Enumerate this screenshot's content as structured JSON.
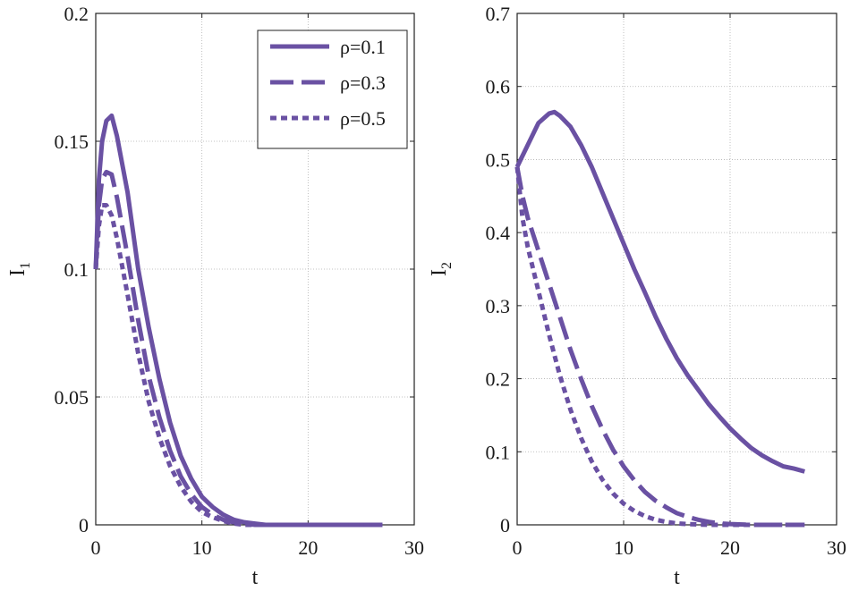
{
  "chart_data": [
    {
      "type": "line",
      "title": "",
      "xlabel": "t",
      "ylabel": "I",
      "ylabel_sub": "1",
      "xlim": [
        0,
        30
      ],
      "ylim": [
        0,
        0.2
      ],
      "xticks": [
        0,
        10,
        20,
        30
      ],
      "yticks": [
        0,
        0.05,
        0.1,
        0.15,
        0.2
      ],
      "xtick_labels": [
        "0",
        "10",
        "20",
        "30"
      ],
      "ytick_labels": [
        "0",
        "0.05",
        "0.1",
        "0.15",
        "0.2"
      ],
      "grid": true,
      "legend_placement": "top-right",
      "line_color": "#6a51a3",
      "series": [
        {
          "name": "ρ=0.1",
          "style": "solid",
          "x": [
            0,
            0.3,
            0.6,
            1,
            1.5,
            2,
            3,
            4,
            5,
            6,
            7,
            8,
            9,
            10,
            11,
            12,
            13,
            14,
            15,
            16,
            18,
            20,
            22,
            24,
            27
          ],
          "y": [
            0.1,
            0.135,
            0.15,
            0.158,
            0.16,
            0.152,
            0.13,
            0.1,
            0.077,
            0.057,
            0.04,
            0.027,
            0.018,
            0.011,
            0.007,
            0.004,
            0.002,
            0.001,
            0.0005,
            0,
            0,
            0,
            0,
            0,
            0
          ]
        },
        {
          "name": "ρ=0.3",
          "style": "dashed",
          "x": [
            0,
            0.3,
            0.6,
            1,
            1.5,
            2,
            3,
            4,
            5,
            6,
            7,
            8,
            9,
            10,
            11,
            12,
            13,
            14,
            15,
            16,
            18,
            20,
            22,
            24,
            27
          ],
          "y": [
            0.1,
            0.125,
            0.135,
            0.138,
            0.137,
            0.128,
            0.105,
            0.08,
            0.058,
            0.042,
            0.029,
            0.019,
            0.012,
            0.007,
            0.004,
            0.002,
            0.001,
            0.0005,
            0,
            0,
            0,
            0,
            0,
            0,
            0
          ]
        },
        {
          "name": "ρ=0.5",
          "style": "dotted",
          "x": [
            0,
            0.3,
            0.6,
            1,
            1.5,
            2,
            3,
            4,
            5,
            6,
            7,
            8,
            9,
            10,
            11,
            12,
            13,
            14,
            15,
            16,
            18,
            20,
            22,
            24,
            27
          ],
          "y": [
            0.1,
            0.117,
            0.125,
            0.125,
            0.121,
            0.112,
            0.09,
            0.067,
            0.048,
            0.034,
            0.023,
            0.015,
            0.009,
            0.005,
            0.003,
            0.0015,
            0.0005,
            0,
            0,
            0,
            0,
            0,
            0,
            0,
            0
          ]
        }
      ]
    },
    {
      "type": "line",
      "title": "",
      "xlabel": "t",
      "ylabel": "I",
      "ylabel_sub": "2",
      "xlim": [
        0,
        30
      ],
      "ylim": [
        0,
        0.7
      ],
      "xticks": [
        0,
        10,
        20,
        30
      ],
      "yticks": [
        0,
        0.1,
        0.2,
        0.3,
        0.4,
        0.5,
        0.6,
        0.7
      ],
      "xtick_labels": [
        "0",
        "10",
        "20",
        "30"
      ],
      "ytick_labels": [
        "0",
        "0.1",
        "0.2",
        "0.3",
        "0.4",
        "0.5",
        "0.6",
        "0.7"
      ],
      "grid": true,
      "line_color": "#6a51a3",
      "series": [
        {
          "style": "solid",
          "x": [
            0,
            1,
            2,
            3,
            3.5,
            4,
            5,
            6,
            7,
            8,
            9,
            10,
            11,
            12,
            13,
            14,
            15,
            16,
            17,
            18,
            19,
            20,
            21,
            22,
            23,
            24,
            25,
            26,
            27
          ],
          "y": [
            0.49,
            0.52,
            0.55,
            0.563,
            0.565,
            0.56,
            0.545,
            0.52,
            0.49,
            0.455,
            0.42,
            0.385,
            0.35,
            0.318,
            0.285,
            0.255,
            0.228,
            0.205,
            0.185,
            0.165,
            0.148,
            0.132,
            0.118,
            0.105,
            0.095,
            0.087,
            0.08,
            0.077,
            0.073
          ]
        },
        {
          "style": "dashed",
          "x": [
            0,
            0.5,
            1,
            2,
            3,
            4,
            5,
            6,
            7,
            8,
            9,
            10,
            11,
            12,
            13,
            14,
            15,
            16,
            17,
            18,
            19,
            20,
            22,
            24,
            27
          ],
          "y": [
            0.49,
            0.45,
            0.42,
            0.375,
            0.33,
            0.285,
            0.24,
            0.2,
            0.163,
            0.131,
            0.103,
            0.08,
            0.061,
            0.045,
            0.033,
            0.024,
            0.016,
            0.011,
            0.007,
            0.004,
            0.002,
            0.001,
            0,
            0,
            0
          ]
        },
        {
          "style": "dotted",
          "x": [
            0,
            0.5,
            1,
            2,
            3,
            4,
            5,
            6,
            7,
            8,
            9,
            10,
            11,
            12,
            13,
            14,
            15,
            16,
            18,
            20,
            22,
            24,
            27
          ],
          "y": [
            0.49,
            0.42,
            0.38,
            0.32,
            0.26,
            0.205,
            0.158,
            0.119,
            0.087,
            0.062,
            0.043,
            0.029,
            0.019,
            0.012,
            0.007,
            0.004,
            0.002,
            0.001,
            0,
            0,
            0,
            0,
            0
          ]
        }
      ]
    }
  ]
}
